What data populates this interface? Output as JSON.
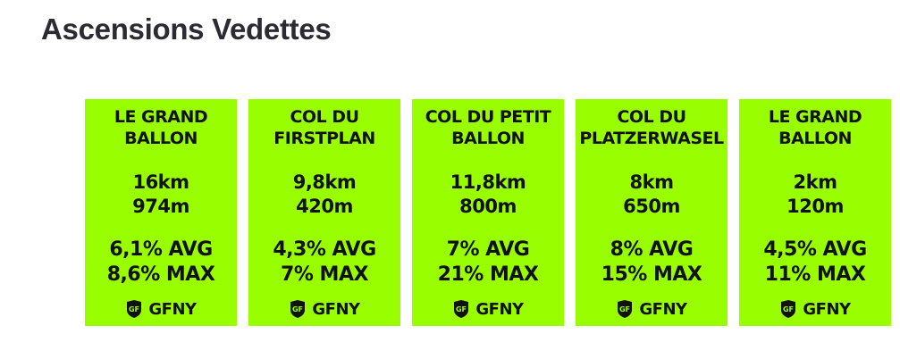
{
  "title": "Ascensions Vedettes",
  "accent": "#99ff00",
  "cards": [
    {
      "name1": "LE GRAND",
      "name2": "BALLON",
      "distance": "16km",
      "elevation": "974m",
      "avg": "6,1% AVG",
      "max": "8,6% MAX",
      "logo": "GFNY"
    },
    {
      "name1": "COL DU",
      "name2": "FIRSTPLAN",
      "distance": "9,8km",
      "elevation": "420m",
      "avg": "4,3% AVG",
      "max": "7% MAX",
      "logo": "GFNY"
    },
    {
      "name1": "COL DU PETIT",
      "name2": "BALLON",
      "distance": "11,8km",
      "elevation": "800m",
      "avg": "7% AVG",
      "max": "21% MAX",
      "logo": "GFNY"
    },
    {
      "name1": "COL DU",
      "name2": "PLATZERWASEL",
      "distance": "8km",
      "elevation": "650m",
      "avg": "8% AVG",
      "max": "15% MAX",
      "logo": "GFNY"
    },
    {
      "name1": "LE GRAND",
      "name2": "BALLON",
      "distance": "2km",
      "elevation": "120m",
      "avg": "4,5% AVG",
      "max": "11% MAX",
      "logo": "GFNY"
    }
  ]
}
